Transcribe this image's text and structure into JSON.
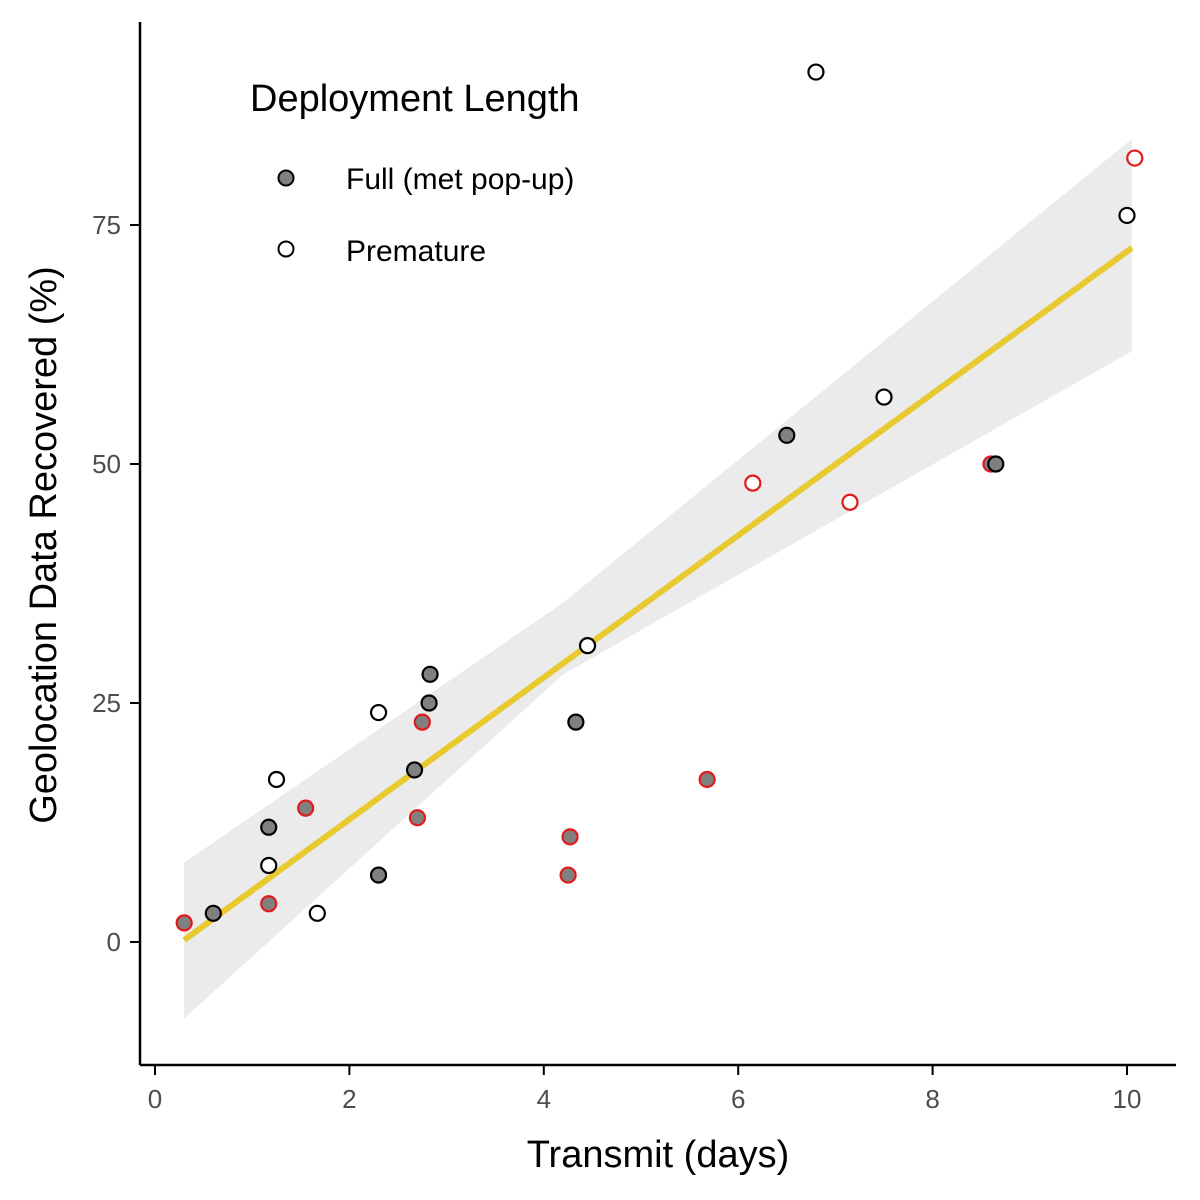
{
  "chart_data": {
    "type": "scatter",
    "xlabel": "Transmit (days)",
    "ylabel": "Geolocation Data Recovered (%)",
    "xlim": [
      -0.2,
      10.6
    ],
    "ylim": [
      -12.5,
      96
    ],
    "x_ticks": [
      0,
      2,
      4,
      6,
      8,
      10
    ],
    "y_ticks": [
      0,
      25,
      50,
      75
    ],
    "legend": {
      "title": "Deployment Length",
      "position": "top-left",
      "entries": [
        {
          "label": "Full (met pop-up)",
          "fill": "#808080"
        },
        {
          "label": "Premature",
          "fill": "#ffffff"
        }
      ]
    },
    "colors": {
      "full_fill": "#808080",
      "premature_fill": "#ffffff",
      "outline_black": "#000000",
      "outline_red": "#e31a1c",
      "fit_line": "#e8c92f",
      "confidence_band": "#ebebeb"
    },
    "fit": {
      "x_start": 0.3,
      "y_start": 0.2,
      "x_end": 10.05,
      "y_end": 72.6,
      "band_start": [
        -8,
        8.3
      ],
      "band_mid": [
        28,
        35.5
      ],
      "band_mid_x": 4.2,
      "band_end": [
        61.8,
        84
      ]
    },
    "points": [
      {
        "x": 0.3,
        "y": 2,
        "group": "Full",
        "outline": "red"
      },
      {
        "x": 0.6,
        "y": 3,
        "group": "Full",
        "outline": "black"
      },
      {
        "x": 1.17,
        "y": 12,
        "group": "Full",
        "outline": "black"
      },
      {
        "x": 1.17,
        "y": 4,
        "group": "Full",
        "outline": "red"
      },
      {
        "x": 1.17,
        "y": 8,
        "group": "Premature",
        "outline": "black"
      },
      {
        "x": 1.25,
        "y": 17,
        "group": "Premature",
        "outline": "black"
      },
      {
        "x": 1.55,
        "y": 14,
        "group": "Full",
        "outline": "red"
      },
      {
        "x": 1.67,
        "y": 3,
        "group": "Premature",
        "outline": "black"
      },
      {
        "x": 2.3,
        "y": 7,
        "group": "Full",
        "outline": "black"
      },
      {
        "x": 2.3,
        "y": 24,
        "group": "Premature",
        "outline": "black"
      },
      {
        "x": 2.67,
        "y": 18,
        "group": "Full",
        "outline": "black"
      },
      {
        "x": 2.7,
        "y": 13,
        "group": "Full",
        "outline": "red"
      },
      {
        "x": 2.75,
        "y": 23,
        "group": "Full",
        "outline": "red"
      },
      {
        "x": 2.82,
        "y": 25,
        "group": "Full",
        "outline": "black"
      },
      {
        "x": 2.83,
        "y": 28,
        "group": "Full",
        "outline": "black"
      },
      {
        "x": 4.25,
        "y": 7,
        "group": "Full",
        "outline": "red"
      },
      {
        "x": 4.27,
        "y": 11,
        "group": "Full",
        "outline": "red"
      },
      {
        "x": 4.33,
        "y": 23,
        "group": "Full",
        "outline": "black"
      },
      {
        "x": 4.45,
        "y": 31,
        "group": "Premature",
        "outline": "black"
      },
      {
        "x": 5.68,
        "y": 17,
        "group": "Full",
        "outline": "red"
      },
      {
        "x": 6.15,
        "y": 48,
        "group": "Premature",
        "outline": "red"
      },
      {
        "x": 6.5,
        "y": 53,
        "group": "Full",
        "outline": "black"
      },
      {
        "x": 6.8,
        "y": 91,
        "group": "Premature",
        "outline": "black"
      },
      {
        "x": 7.15,
        "y": 46,
        "group": "Premature",
        "outline": "red"
      },
      {
        "x": 7.5,
        "y": 57,
        "group": "Premature",
        "outline": "black"
      },
      {
        "x": 8.6,
        "y": 50,
        "group": "Full",
        "outline": "red"
      },
      {
        "x": 8.65,
        "y": 50,
        "group": "Full",
        "outline": "black"
      },
      {
        "x": 10.0,
        "y": 76,
        "group": "Premature",
        "outline": "black"
      },
      {
        "x": 10.08,
        "y": 82,
        "group": "Premature",
        "outline": "red"
      }
    ]
  }
}
